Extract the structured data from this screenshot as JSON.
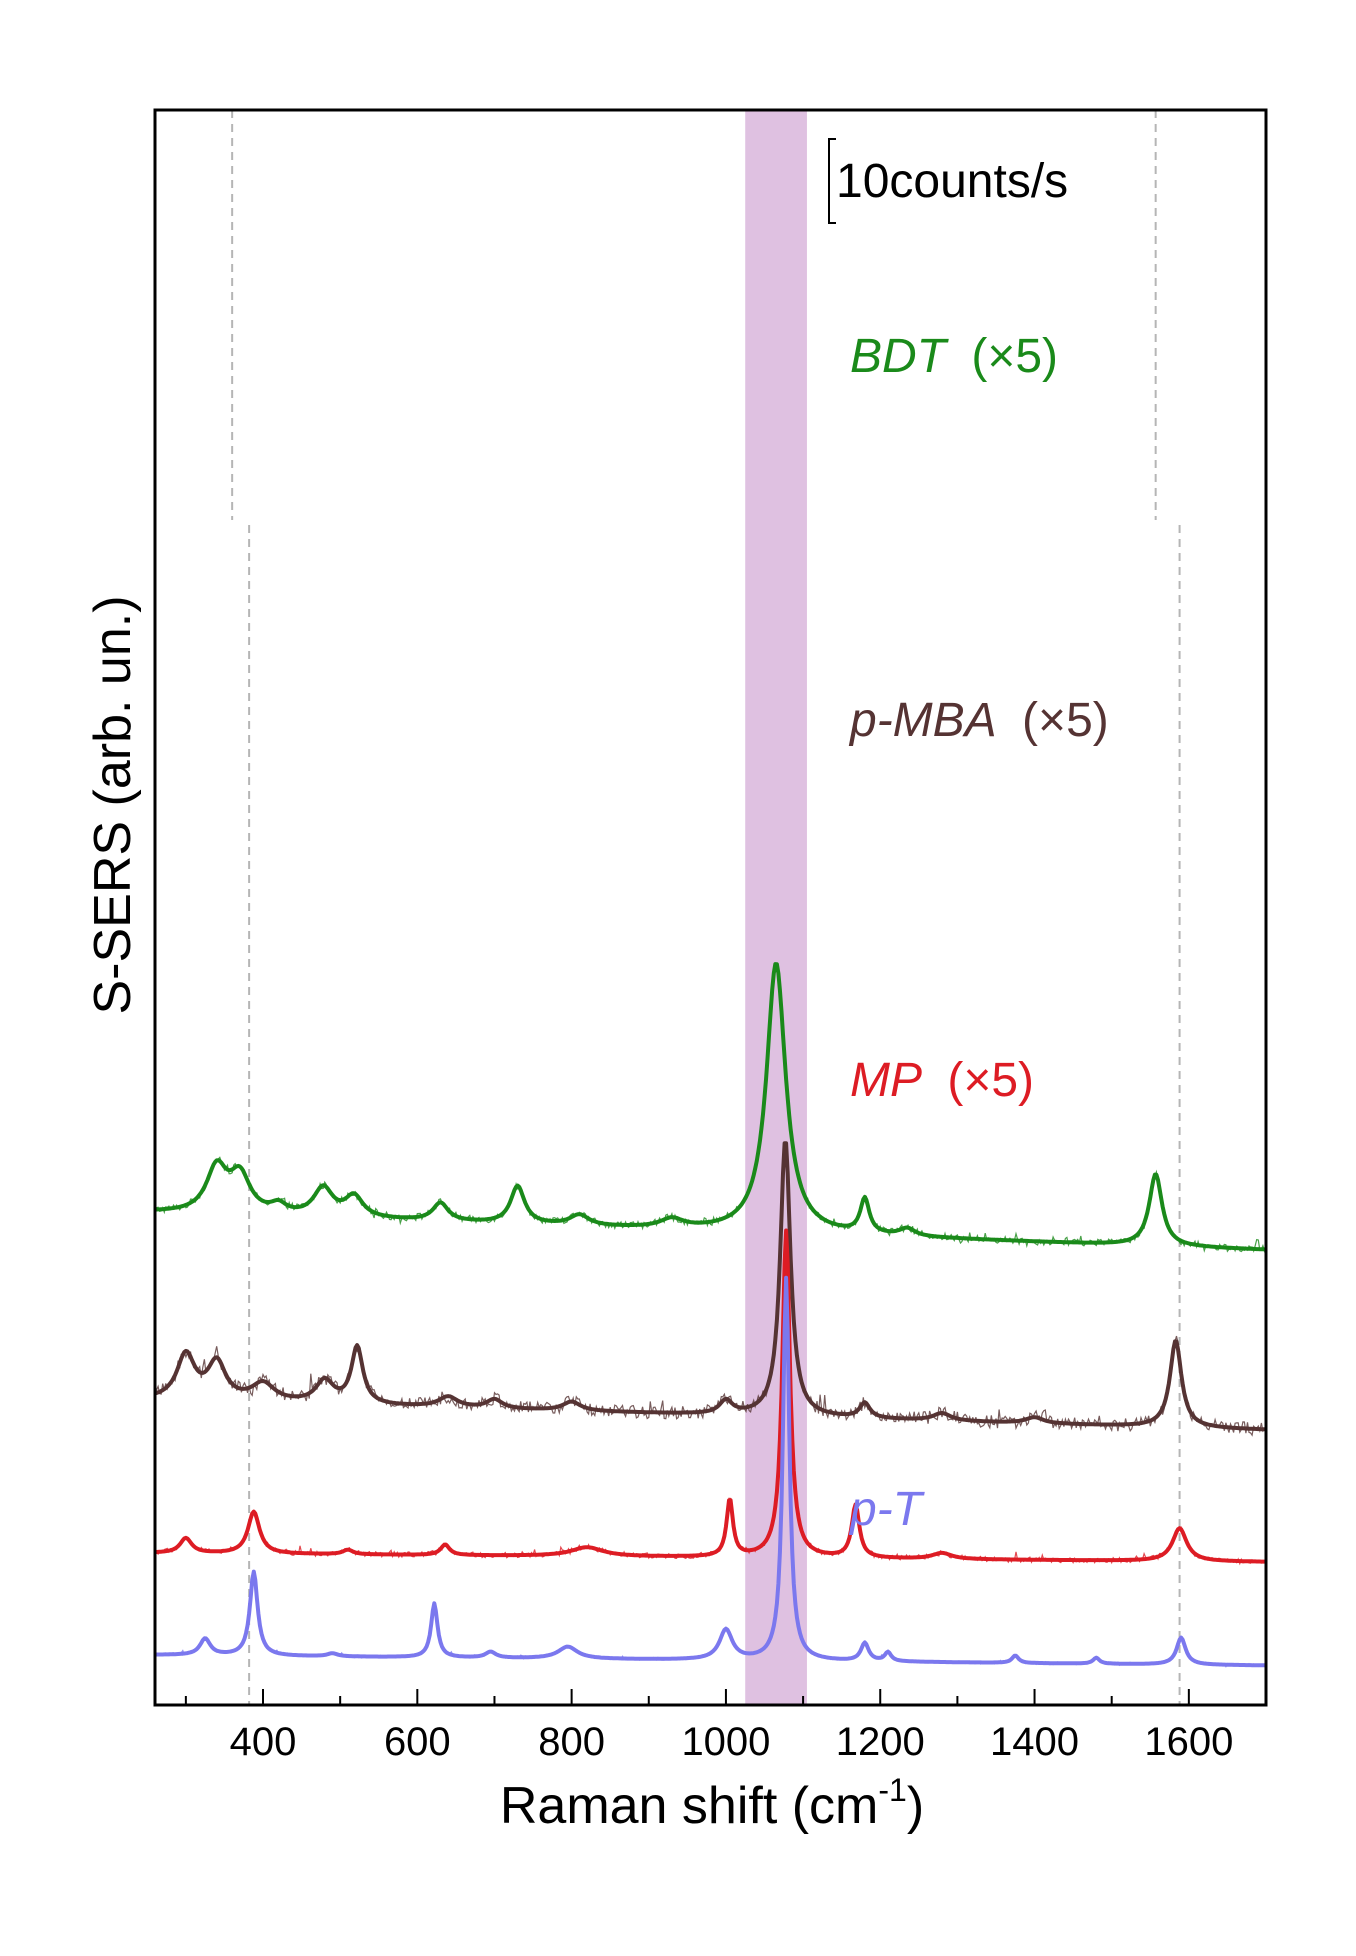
{
  "chart_data": {
    "type": "line",
    "xlabel": "Raman shift (cm",
    "xlabel_sup": "-1",
    "xlabel_end": ")",
    "ylabel": "S-SERS (arb. un.)",
    "xlim": [
      260,
      1700
    ],
    "x_ticks": [
      400,
      600,
      800,
      1000,
      1200,
      1400,
      1600
    ],
    "x_tick_labels": [
      "400",
      "600",
      "800",
      "1000",
      "1200",
      "1400",
      "1600"
    ],
    "y_ticks": "none",
    "grid": false,
    "legend": "none",
    "highlight_band": {
      "from": 1025,
      "to": 1105,
      "color": "#d9b6dc"
    },
    "reference_lines": [
      {
        "x": 360,
        "series": "BDT"
      },
      {
        "x": 1557,
        "series": "BDT"
      },
      {
        "x": 382,
        "series": "p-MBA, MP, p-T"
      },
      {
        "x": 1588,
        "series": "p-MBA, MP, p-T"
      }
    ],
    "scale_bar": {
      "label": "10counts/s"
    },
    "series": [
      {
        "name": "BDT",
        "multiplier": "(×5)",
        "color": "#1a8a1a",
        "baseline": 3.25,
        "slope": -0.25,
        "noise": 0.025,
        "peaks": [
          {
            "x": 340,
            "h": 0.3,
            "w": 16
          },
          {
            "x": 370,
            "h": 0.25,
            "w": 16
          },
          {
            "x": 420,
            "h": 0.06,
            "w": 12
          },
          {
            "x": 478,
            "h": 0.19,
            "w": 15
          },
          {
            "x": 518,
            "h": 0.14,
            "w": 14
          },
          {
            "x": 630,
            "h": 0.12,
            "w": 12
          },
          {
            "x": 730,
            "h": 0.25,
            "w": 11
          },
          {
            "x": 810,
            "h": 0.07,
            "w": 15
          },
          {
            "x": 930,
            "h": 0.06,
            "w": 18
          },
          {
            "x": 1065,
            "h": 1.8,
            "w": 15
          },
          {
            "x": 1180,
            "h": 0.23,
            "w": 7
          },
          {
            "x": 1235,
            "h": 0.05,
            "w": 12
          },
          {
            "x": 1557,
            "h": 0.48,
            "w": 10
          }
        ]
      },
      {
        "name": "p-MBA",
        "multiplier": "(×5)",
        "color": "#553333",
        "baseline": 2.0,
        "slope": -0.2,
        "noise": 0.045,
        "peaks": [
          {
            "x": 300,
            "h": 0.3,
            "w": 14
          },
          {
            "x": 340,
            "h": 0.25,
            "w": 14
          },
          {
            "x": 400,
            "h": 0.12,
            "w": 18
          },
          {
            "x": 480,
            "h": 0.15,
            "w": 14
          },
          {
            "x": 522,
            "h": 0.38,
            "w": 9
          },
          {
            "x": 640,
            "h": 0.07,
            "w": 15
          },
          {
            "x": 700,
            "h": 0.06,
            "w": 12
          },
          {
            "x": 800,
            "h": 0.06,
            "w": 14
          },
          {
            "x": 1000,
            "h": 0.09,
            "w": 10
          },
          {
            "x": 1077,
            "h": 1.85,
            "w": 8
          },
          {
            "x": 1180,
            "h": 0.1,
            "w": 8
          },
          {
            "x": 1280,
            "h": 0.05,
            "w": 14
          },
          {
            "x": 1400,
            "h": 0.04,
            "w": 14
          },
          {
            "x": 1583,
            "h": 0.58,
            "w": 9
          }
        ]
      },
      {
        "name": "MP",
        "multiplier": "(×5)",
        "color": "#dd1c24",
        "baseline": 0.98,
        "slope": -0.06,
        "noise": 0.018,
        "peaks": [
          {
            "x": 300,
            "h": 0.1,
            "w": 9
          },
          {
            "x": 388,
            "h": 0.28,
            "w": 9
          },
          {
            "x": 510,
            "h": 0.03,
            "w": 8
          },
          {
            "x": 636,
            "h": 0.07,
            "w": 7
          },
          {
            "x": 820,
            "h": 0.06,
            "w": 25
          },
          {
            "x": 1005,
            "h": 0.38,
            "w": 5
          },
          {
            "x": 1078,
            "h": 2.18,
            "w": 6
          },
          {
            "x": 1168,
            "h": 0.35,
            "w": 6
          },
          {
            "x": 1280,
            "h": 0.04,
            "w": 15
          },
          {
            "x": 1588,
            "h": 0.22,
            "w": 11
          }
        ]
      },
      {
        "name": "p-T",
        "multiplier": "",
        "color": "#7b78ee",
        "baseline": 0.3,
        "slope": -0.07,
        "noise": 0.01,
        "peaks": [
          {
            "x": 325,
            "h": 0.11,
            "w": 8
          },
          {
            "x": 388,
            "h": 0.56,
            "w": 6
          },
          {
            "x": 490,
            "h": 0.02,
            "w": 8
          },
          {
            "x": 622,
            "h": 0.36,
            "w": 5
          },
          {
            "x": 695,
            "h": 0.04,
            "w": 8
          },
          {
            "x": 795,
            "h": 0.08,
            "w": 15
          },
          {
            "x": 1000,
            "h": 0.2,
            "w": 10
          },
          {
            "x": 1078,
            "h": 2.55,
            "w": 5
          },
          {
            "x": 1180,
            "h": 0.12,
            "w": 6
          },
          {
            "x": 1210,
            "h": 0.06,
            "w": 5
          },
          {
            "x": 1375,
            "h": 0.05,
            "w": 5
          },
          {
            "x": 1480,
            "h": 0.04,
            "w": 5
          },
          {
            "x": 1590,
            "h": 0.18,
            "w": 7
          }
        ]
      }
    ]
  }
}
